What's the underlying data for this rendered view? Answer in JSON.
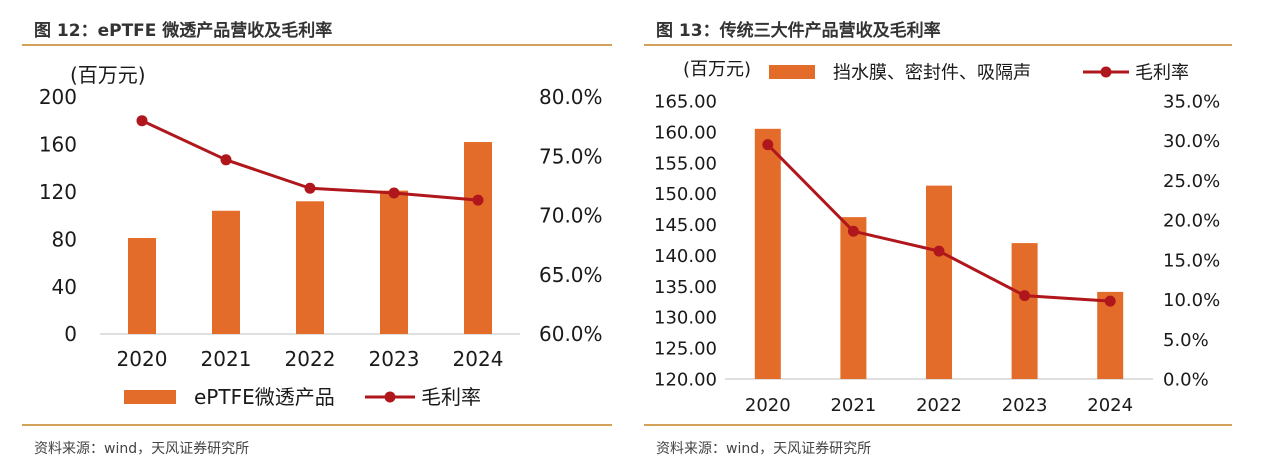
{
  "colors": {
    "bar": "#e46c2a",
    "line": "#b0171d",
    "rule": "#d4a15a"
  },
  "chart_data": [
    {
      "type": "bar",
      "title": "图 12：ePTFE 微透产品营收及毛利率",
      "source": "资料来源：wind，天风证券研究所",
      "categories": [
        "2020",
        "2021",
        "2022",
        "2023",
        "2024"
      ],
      "ylabel_left": "(百万元)",
      "ylim_left": [
        0,
        200
      ],
      "yticks_left": [
        "0",
        "40",
        "80",
        "120",
        "160",
        "200"
      ],
      "ylim_right": [
        0.6,
        0.8
      ],
      "yticks_right": [
        "60.0%",
        "65.0%",
        "70.0%",
        "75.0%",
        "80.0%"
      ],
      "series": [
        {
          "name": "ePTFE微透产品",
          "kind": "bar",
          "axis": "left",
          "values": [
            81,
            104,
            112,
            121,
            162
          ]
        },
        {
          "name": "毛利率",
          "kind": "line",
          "axis": "right",
          "values": [
            0.78,
            0.747,
            0.723,
            0.719,
            0.713
          ]
        }
      ],
      "legend_position": "bottom"
    },
    {
      "type": "bar",
      "title": "图 13：传统三大件产品营收及毛利率",
      "source": "资料来源：wind，天风证券研究所",
      "categories": [
        "2020",
        "2021",
        "2022",
        "2023",
        "2024"
      ],
      "ylabel_left": "(百万元)",
      "ylim_left": [
        120,
        165
      ],
      "yticks_left": [
        "120.00",
        "125.00",
        "130.00",
        "135.00",
        "140.00",
        "145.00",
        "150.00",
        "155.00",
        "160.00",
        "165.00"
      ],
      "ylim_right": [
        0,
        0.35
      ],
      "yticks_right": [
        "0.0%",
        "5.0%",
        "10.0%",
        "15.0%",
        "20.0%",
        "25.0%",
        "30.0%",
        "35.0%"
      ],
      "series": [
        {
          "name": "挡水膜、密封件、吸隔声",
          "kind": "bar",
          "axis": "left",
          "values": [
            160.5,
            146.2,
            151.3,
            142.0,
            134.1
          ]
        },
        {
          "name": "毛利率",
          "kind": "line",
          "axis": "right",
          "values": [
            0.295,
            0.186,
            0.161,
            0.105,
            0.098
          ]
        }
      ],
      "legend_position": "top"
    }
  ]
}
